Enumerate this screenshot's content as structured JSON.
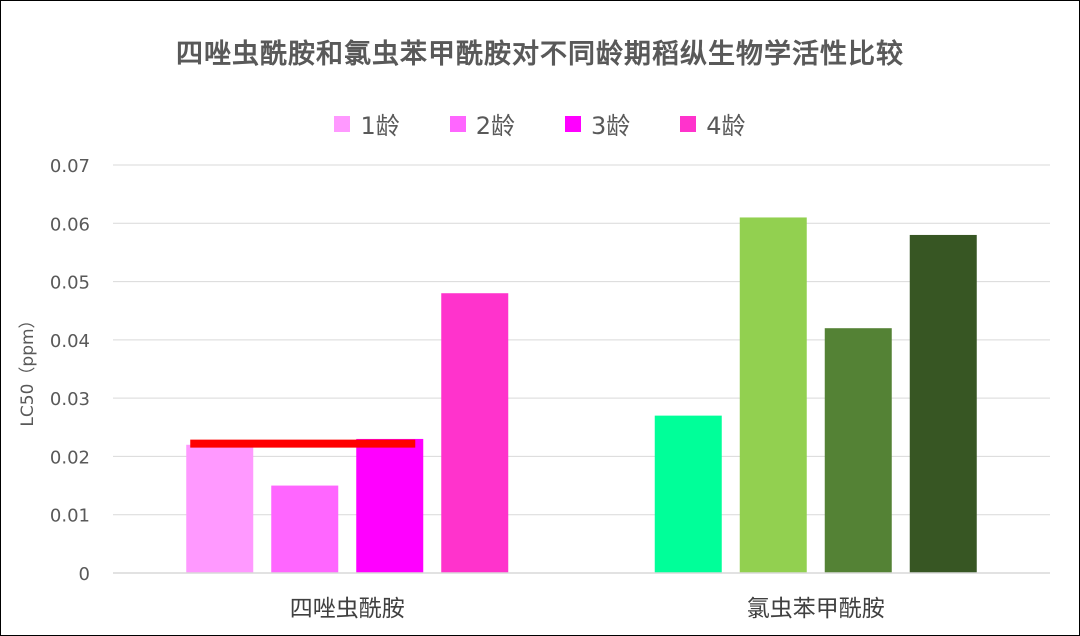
{
  "chart_data": {
    "type": "bar",
    "title": "四唑虫酰胺和氯虫苯甲酰胺对不同龄期稻纵生物学活性比较",
    "ylabel": "LC50（ppm）",
    "ylim": [
      0,
      0.07
    ],
    "yticks": [
      "0",
      "0.01",
      "0.02",
      "0.03",
      "0.04",
      "0.05",
      "0.06",
      "0.07"
    ],
    "grid": true,
    "legend_position": "top",
    "categories": [
      "四唑虫酰胺",
      "氯虫苯甲酰胺"
    ],
    "series": [
      {
        "name": "1龄",
        "values": [
          0.022,
          0.027
        ],
        "colors": [
          "#ff99ff",
          "#00ff99"
        ]
      },
      {
        "name": "2龄",
        "values": [
          0.015,
          0.061
        ],
        "colors": [
          "#ff66ff",
          "#92d050"
        ]
      },
      {
        "name": "3龄",
        "values": [
          0.023,
          0.042
        ],
        "colors": [
          "#ff00ff",
          "#548235"
        ]
      },
      {
        "name": "4龄",
        "values": [
          0.048,
          0.058
        ],
        "colors": [
          "#ff33cc",
          "#375623"
        ]
      }
    ],
    "annotation_line": {
      "y": 0.0222,
      "color": "#ff0000",
      "from_series": 0,
      "to_series": 2,
      "category": 0
    }
  }
}
